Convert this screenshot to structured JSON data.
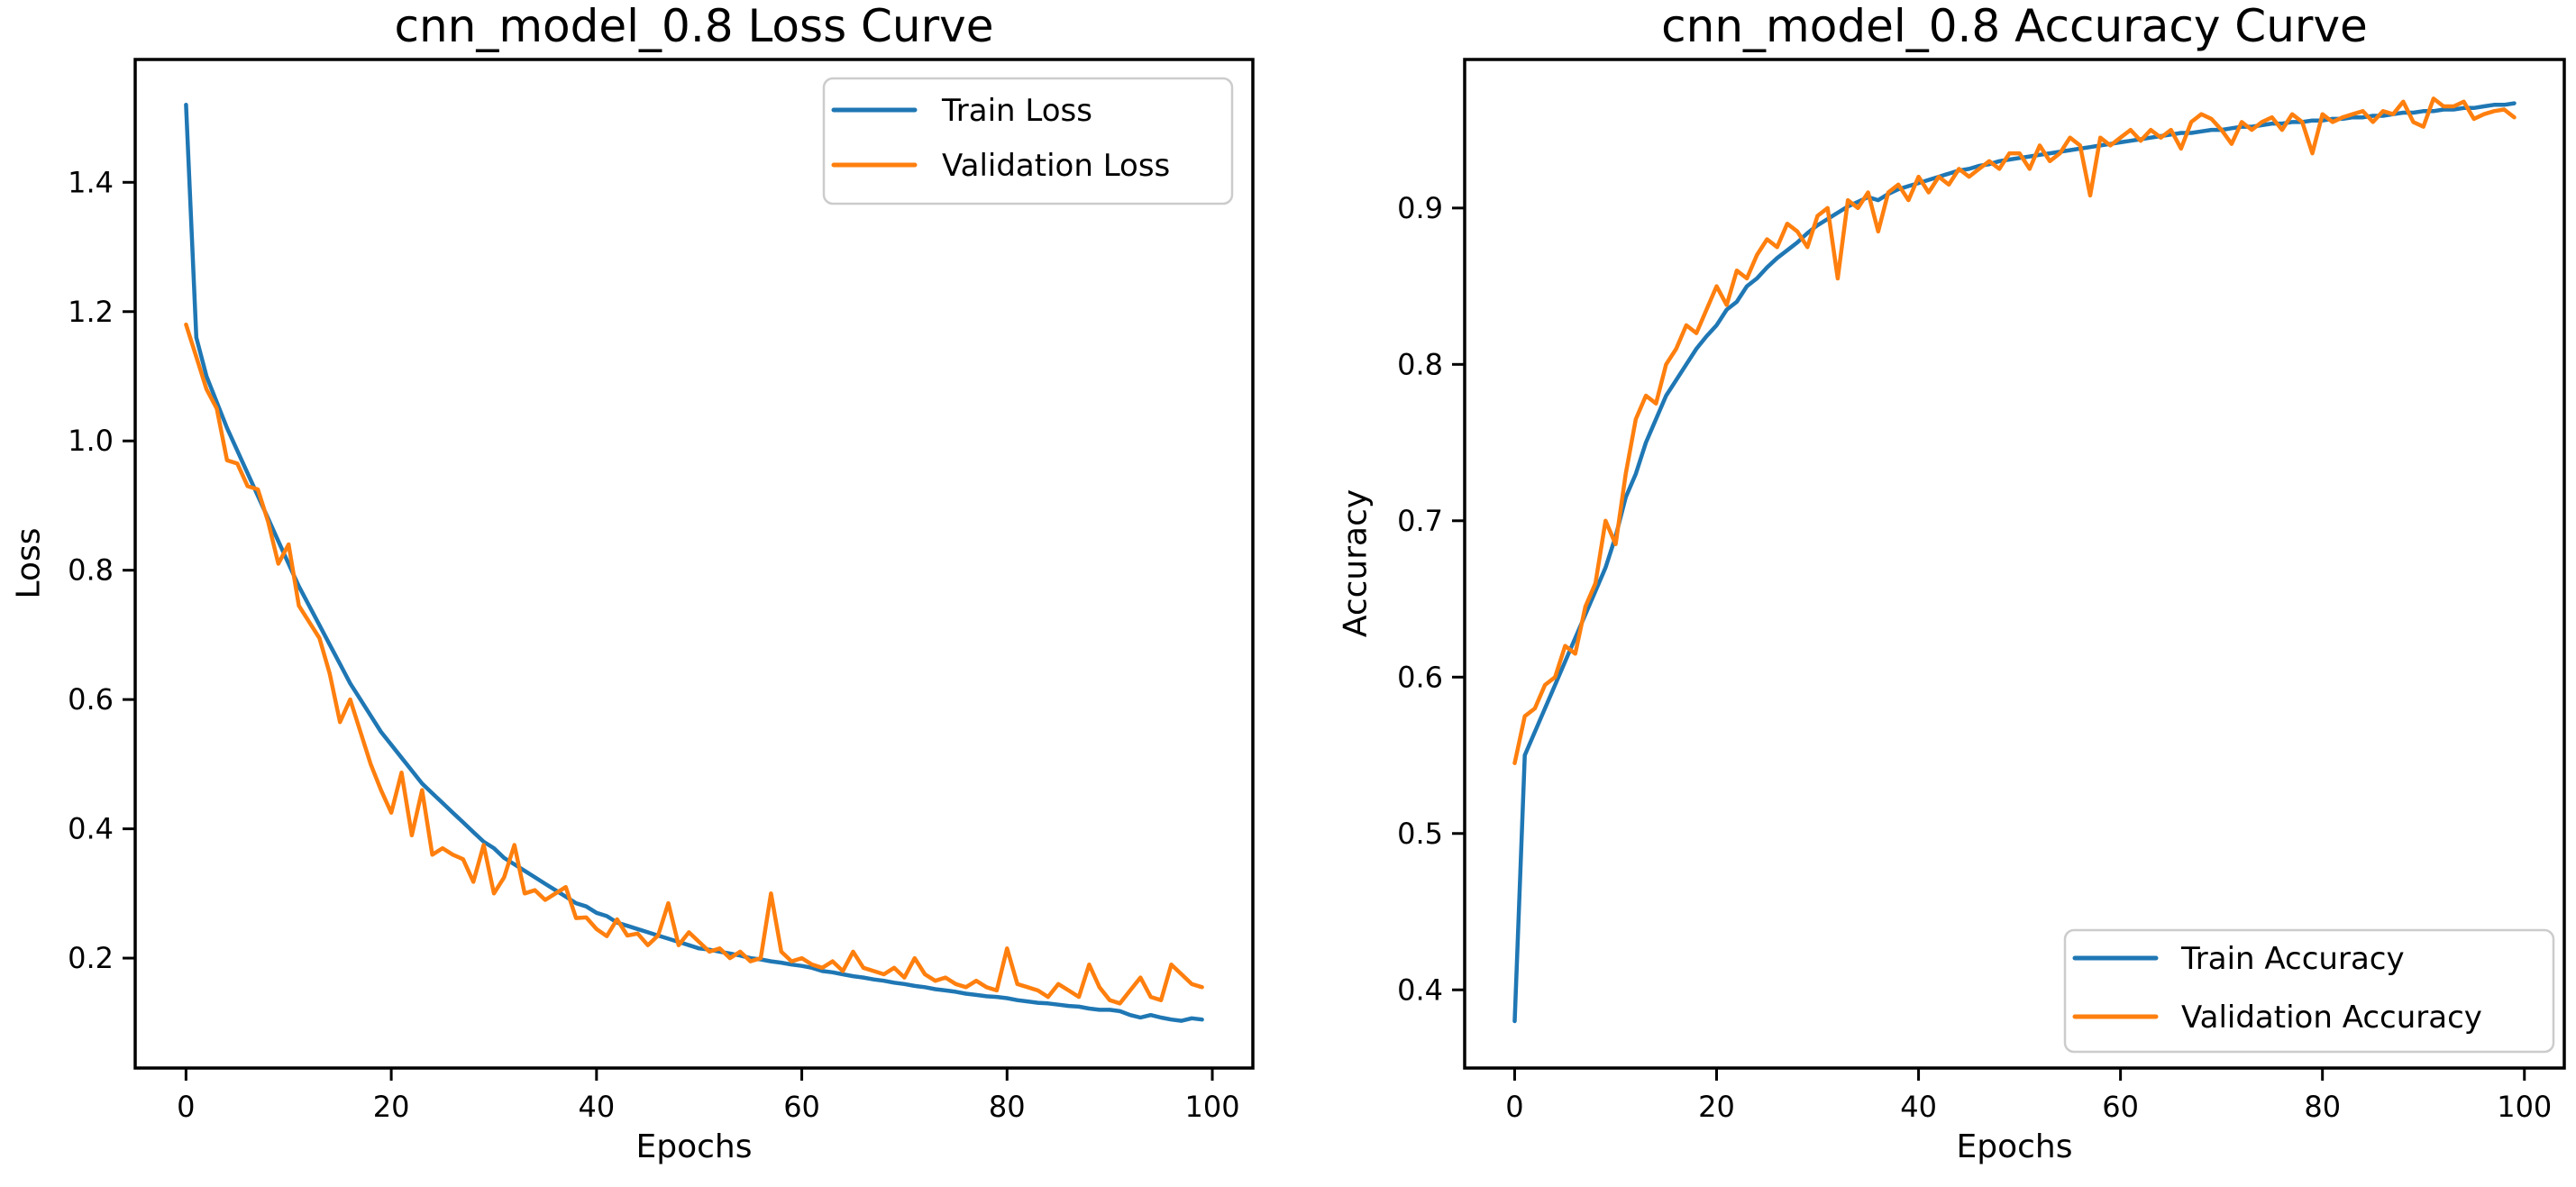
{
  "figure": {
    "background": "#ffffff",
    "accent_blue": "#1f77b4",
    "accent_orange": "#ff7f0e"
  },
  "chart_data": [
    {
      "type": "line",
      "title": "cnn_model_0.8 Loss Curve",
      "xlabel": "Epochs",
      "ylabel": "Loss",
      "grid": false,
      "legend_position": "upper right",
      "xlim": [
        -4.95,
        103.95
      ],
      "ylim": [
        0.03,
        1.59
      ],
      "x_ticks": [
        0,
        20,
        40,
        60,
        80,
        100
      ],
      "y_ticks": [
        0.2,
        0.4,
        0.6,
        0.8,
        1.0,
        1.2,
        1.4
      ],
      "x": [
        0,
        1,
        2,
        3,
        4,
        5,
        6,
        7,
        8,
        9,
        10,
        11,
        12,
        13,
        14,
        15,
        16,
        17,
        18,
        19,
        20,
        21,
        22,
        23,
        24,
        25,
        26,
        27,
        28,
        29,
        30,
        31,
        32,
        33,
        34,
        35,
        36,
        37,
        38,
        39,
        40,
        41,
        42,
        43,
        44,
        45,
        46,
        47,
        48,
        49,
        50,
        51,
        52,
        53,
        54,
        55,
        56,
        57,
        58,
        59,
        60,
        61,
        62,
        63,
        64,
        65,
        66,
        67,
        68,
        69,
        70,
        71,
        72,
        73,
        74,
        75,
        76,
        77,
        78,
        79,
        80,
        81,
        82,
        83,
        84,
        85,
        86,
        87,
        88,
        89,
        90,
        91,
        92,
        93,
        94,
        95,
        96,
        97,
        98,
        99
      ],
      "series": [
        {
          "name": "Train Loss",
          "color": "#1f77b4",
          "values": [
            1.52,
            1.16,
            1.1,
            1.06,
            1.02,
            0.985,
            0.95,
            0.915,
            0.88,
            0.845,
            0.81,
            0.775,
            0.745,
            0.715,
            0.685,
            0.655,
            0.625,
            0.6,
            0.575,
            0.55,
            0.53,
            0.51,
            0.49,
            0.47,
            0.455,
            0.44,
            0.425,
            0.41,
            0.395,
            0.38,
            0.37,
            0.355,
            0.345,
            0.335,
            0.325,
            0.315,
            0.305,
            0.295,
            0.285,
            0.28,
            0.27,
            0.265,
            0.255,
            0.25,
            0.245,
            0.24,
            0.235,
            0.23,
            0.225,
            0.22,
            0.215,
            0.213,
            0.21,
            0.207,
            0.204,
            0.2,
            0.198,
            0.195,
            0.193,
            0.19,
            0.188,
            0.185,
            0.18,
            0.178,
            0.175,
            0.172,
            0.17,
            0.167,
            0.165,
            0.162,
            0.16,
            0.157,
            0.155,
            0.152,
            0.15,
            0.148,
            0.145,
            0.143,
            0.141,
            0.14,
            0.138,
            0.135,
            0.133,
            0.131,
            0.13,
            0.128,
            0.126,
            0.125,
            0.122,
            0.12,
            0.12,
            0.118,
            0.112,
            0.108,
            0.112,
            0.108,
            0.105,
            0.103,
            0.107,
            0.105
          ]
        },
        {
          "name": "Validation Loss",
          "color": "#ff7f0e",
          "values": [
            1.18,
            1.13,
            1.08,
            1.05,
            0.97,
            0.965,
            0.93,
            0.925,
            0.875,
            0.81,
            0.84,
            0.745,
            0.72,
            0.695,
            0.64,
            0.565,
            0.6,
            0.55,
            0.5,
            0.46,
            0.425,
            0.487,
            0.39,
            0.46,
            0.36,
            0.37,
            0.36,
            0.353,
            0.318,
            0.375,
            0.3,
            0.325,
            0.375,
            0.3,
            0.305,
            0.29,
            0.3,
            0.31,
            0.262,
            0.263,
            0.245,
            0.234,
            0.26,
            0.235,
            0.238,
            0.22,
            0.235,
            0.285,
            0.22,
            0.24,
            0.225,
            0.21,
            0.215,
            0.2,
            0.21,
            0.195,
            0.2,
            0.3,
            0.21,
            0.195,
            0.2,
            0.19,
            0.185,
            0.195,
            0.18,
            0.21,
            0.185,
            0.18,
            0.175,
            0.185,
            0.17,
            0.2,
            0.175,
            0.165,
            0.17,
            0.16,
            0.155,
            0.165,
            0.155,
            0.15,
            0.215,
            0.16,
            0.155,
            0.15,
            0.14,
            0.16,
            0.15,
            0.14,
            0.19,
            0.155,
            0.135,
            0.13,
            0.15,
            0.17,
            0.14,
            0.135,
            0.19,
            0.175,
            0.16,
            0.155
          ]
        }
      ]
    },
    {
      "type": "line",
      "title": "cnn_model_0.8 Accuracy Curve",
      "xlabel": "Epochs",
      "ylabel": "Accuracy",
      "grid": false,
      "legend_position": "lower right",
      "xlim": [
        -4.95,
        103.95
      ],
      "ylim": [
        0.35,
        0.995
      ],
      "x_ticks": [
        0,
        20,
        40,
        60,
        80,
        100
      ],
      "y_ticks": [
        0.4,
        0.5,
        0.6,
        0.7,
        0.8,
        0.9
      ],
      "x": [
        0,
        1,
        2,
        3,
        4,
        5,
        6,
        7,
        8,
        9,
        10,
        11,
        12,
        13,
        14,
        15,
        16,
        17,
        18,
        19,
        20,
        21,
        22,
        23,
        24,
        25,
        26,
        27,
        28,
        29,
        30,
        31,
        32,
        33,
        34,
        35,
        36,
        37,
        38,
        39,
        40,
        41,
        42,
        43,
        44,
        45,
        46,
        47,
        48,
        49,
        50,
        51,
        52,
        53,
        54,
        55,
        56,
        57,
        58,
        59,
        60,
        61,
        62,
        63,
        64,
        65,
        66,
        67,
        68,
        69,
        70,
        71,
        72,
        73,
        74,
        75,
        76,
        77,
        78,
        79,
        80,
        81,
        82,
        83,
        84,
        85,
        86,
        87,
        88,
        89,
        90,
        91,
        92,
        93,
        94,
        95,
        96,
        97,
        98,
        99
      ],
      "series": [
        {
          "name": "Train Accuracy",
          "color": "#1f77b4",
          "values": [
            0.38,
            0.55,
            0.565,
            0.58,
            0.595,
            0.61,
            0.625,
            0.64,
            0.655,
            0.67,
            0.69,
            0.715,
            0.73,
            0.75,
            0.765,
            0.78,
            0.79,
            0.8,
            0.81,
            0.818,
            0.825,
            0.835,
            0.84,
            0.85,
            0.855,
            0.862,
            0.868,
            0.873,
            0.878,
            0.884,
            0.889,
            0.893,
            0.897,
            0.901,
            0.904,
            0.907,
            0.905,
            0.909,
            0.912,
            0.914,
            0.916,
            0.918,
            0.92,
            0.922,
            0.924,
            0.925,
            0.927,
            0.928,
            0.93,
            0.931,
            0.932,
            0.933,
            0.934,
            0.935,
            0.936,
            0.937,
            0.938,
            0.939,
            0.94,
            0.941,
            0.942,
            0.943,
            0.944,
            0.945,
            0.946,
            0.947,
            0.948,
            0.948,
            0.949,
            0.95,
            0.95,
            0.951,
            0.952,
            0.952,
            0.953,
            0.954,
            0.954,
            0.955,
            0.955,
            0.956,
            0.956,
            0.957,
            0.957,
            0.958,
            0.958,
            0.959,
            0.959,
            0.96,
            0.961,
            0.961,
            0.962,
            0.962,
            0.963,
            0.963,
            0.964,
            0.964,
            0.965,
            0.966,
            0.966,
            0.967
          ]
        },
        {
          "name": "Validation Accuracy",
          "color": "#ff7f0e",
          "values": [
            0.545,
            0.575,
            0.58,
            0.595,
            0.6,
            0.62,
            0.615,
            0.645,
            0.66,
            0.7,
            0.685,
            0.73,
            0.765,
            0.78,
            0.775,
            0.8,
            0.81,
            0.825,
            0.82,
            0.835,
            0.85,
            0.838,
            0.86,
            0.855,
            0.87,
            0.88,
            0.875,
            0.89,
            0.885,
            0.875,
            0.895,
            0.9,
            0.855,
            0.905,
            0.9,
            0.91,
            0.885,
            0.91,
            0.915,
            0.905,
            0.92,
            0.91,
            0.92,
            0.915,
            0.925,
            0.92,
            0.925,
            0.93,
            0.925,
            0.935,
            0.935,
            0.925,
            0.94,
            0.93,
            0.935,
            0.945,
            0.94,
            0.908,
            0.945,
            0.94,
            0.945,
            0.95,
            0.943,
            0.95,
            0.945,
            0.95,
            0.938,
            0.955,
            0.96,
            0.957,
            0.95,
            0.941,
            0.955,
            0.95,
            0.955,
            0.958,
            0.95,
            0.96,
            0.955,
            0.935,
            0.96,
            0.955,
            0.958,
            0.96,
            0.962,
            0.955,
            0.962,
            0.96,
            0.968,
            0.955,
            0.952,
            0.97,
            0.965,
            0.965,
            0.968,
            0.957,
            0.96,
            0.962,
            0.963,
            0.958
          ]
        }
      ]
    }
  ]
}
